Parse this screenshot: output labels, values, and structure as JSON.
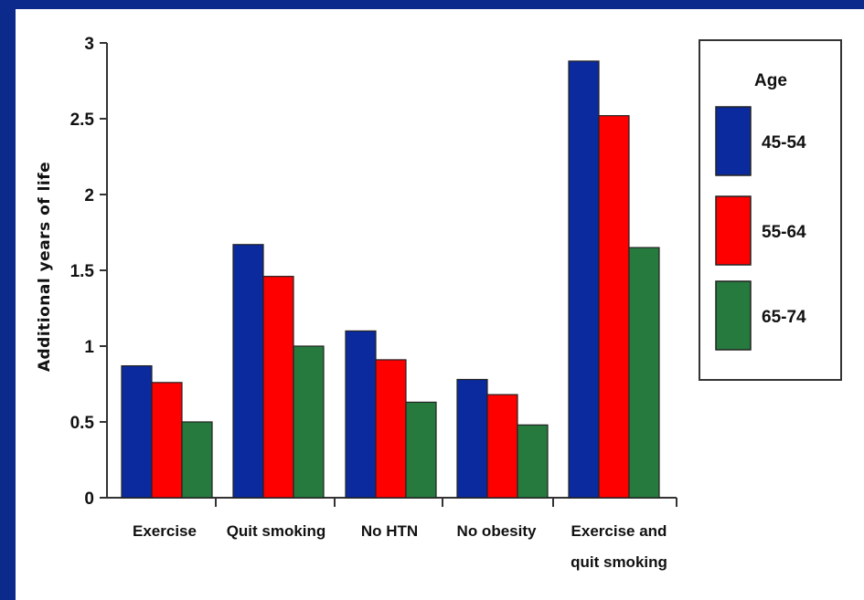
{
  "colors": {
    "slide_background": "#0b2a8c",
    "panel_background": "#ffffff",
    "axis": "#333333"
  },
  "chart_data": {
    "type": "bar",
    "title": "",
    "xlabel": "",
    "ylabel": "Additional years of life",
    "ylim": [
      0,
      3
    ],
    "yticks": [
      "0",
      "0.5",
      "1",
      "1.5",
      "2",
      "2.5",
      "3"
    ],
    "ytick_values": [
      0,
      0.5,
      1,
      1.5,
      2,
      2.5,
      3
    ],
    "grid": false,
    "legend_position": "right",
    "legend_title": "Age",
    "categories": [
      [
        "Exercise"
      ],
      [
        "Quit smoking"
      ],
      [
        "No HTN"
      ],
      [
        "No obesity"
      ],
      [
        "Exercise and",
        "quit smoking"
      ]
    ],
    "series": [
      {
        "name": "45-54",
        "color": "#0a2a9e",
        "values": [
          0.87,
          1.67,
          1.1,
          0.78,
          2.88
        ]
      },
      {
        "name": "55-64",
        "color": "#ff0000",
        "values": [
          0.76,
          1.46,
          0.91,
          0.68,
          2.52
        ]
      },
      {
        "name": "65-74",
        "color": "#267a3e",
        "values": [
          0.5,
          1.0,
          0.63,
          0.48,
          1.65
        ]
      }
    ]
  }
}
